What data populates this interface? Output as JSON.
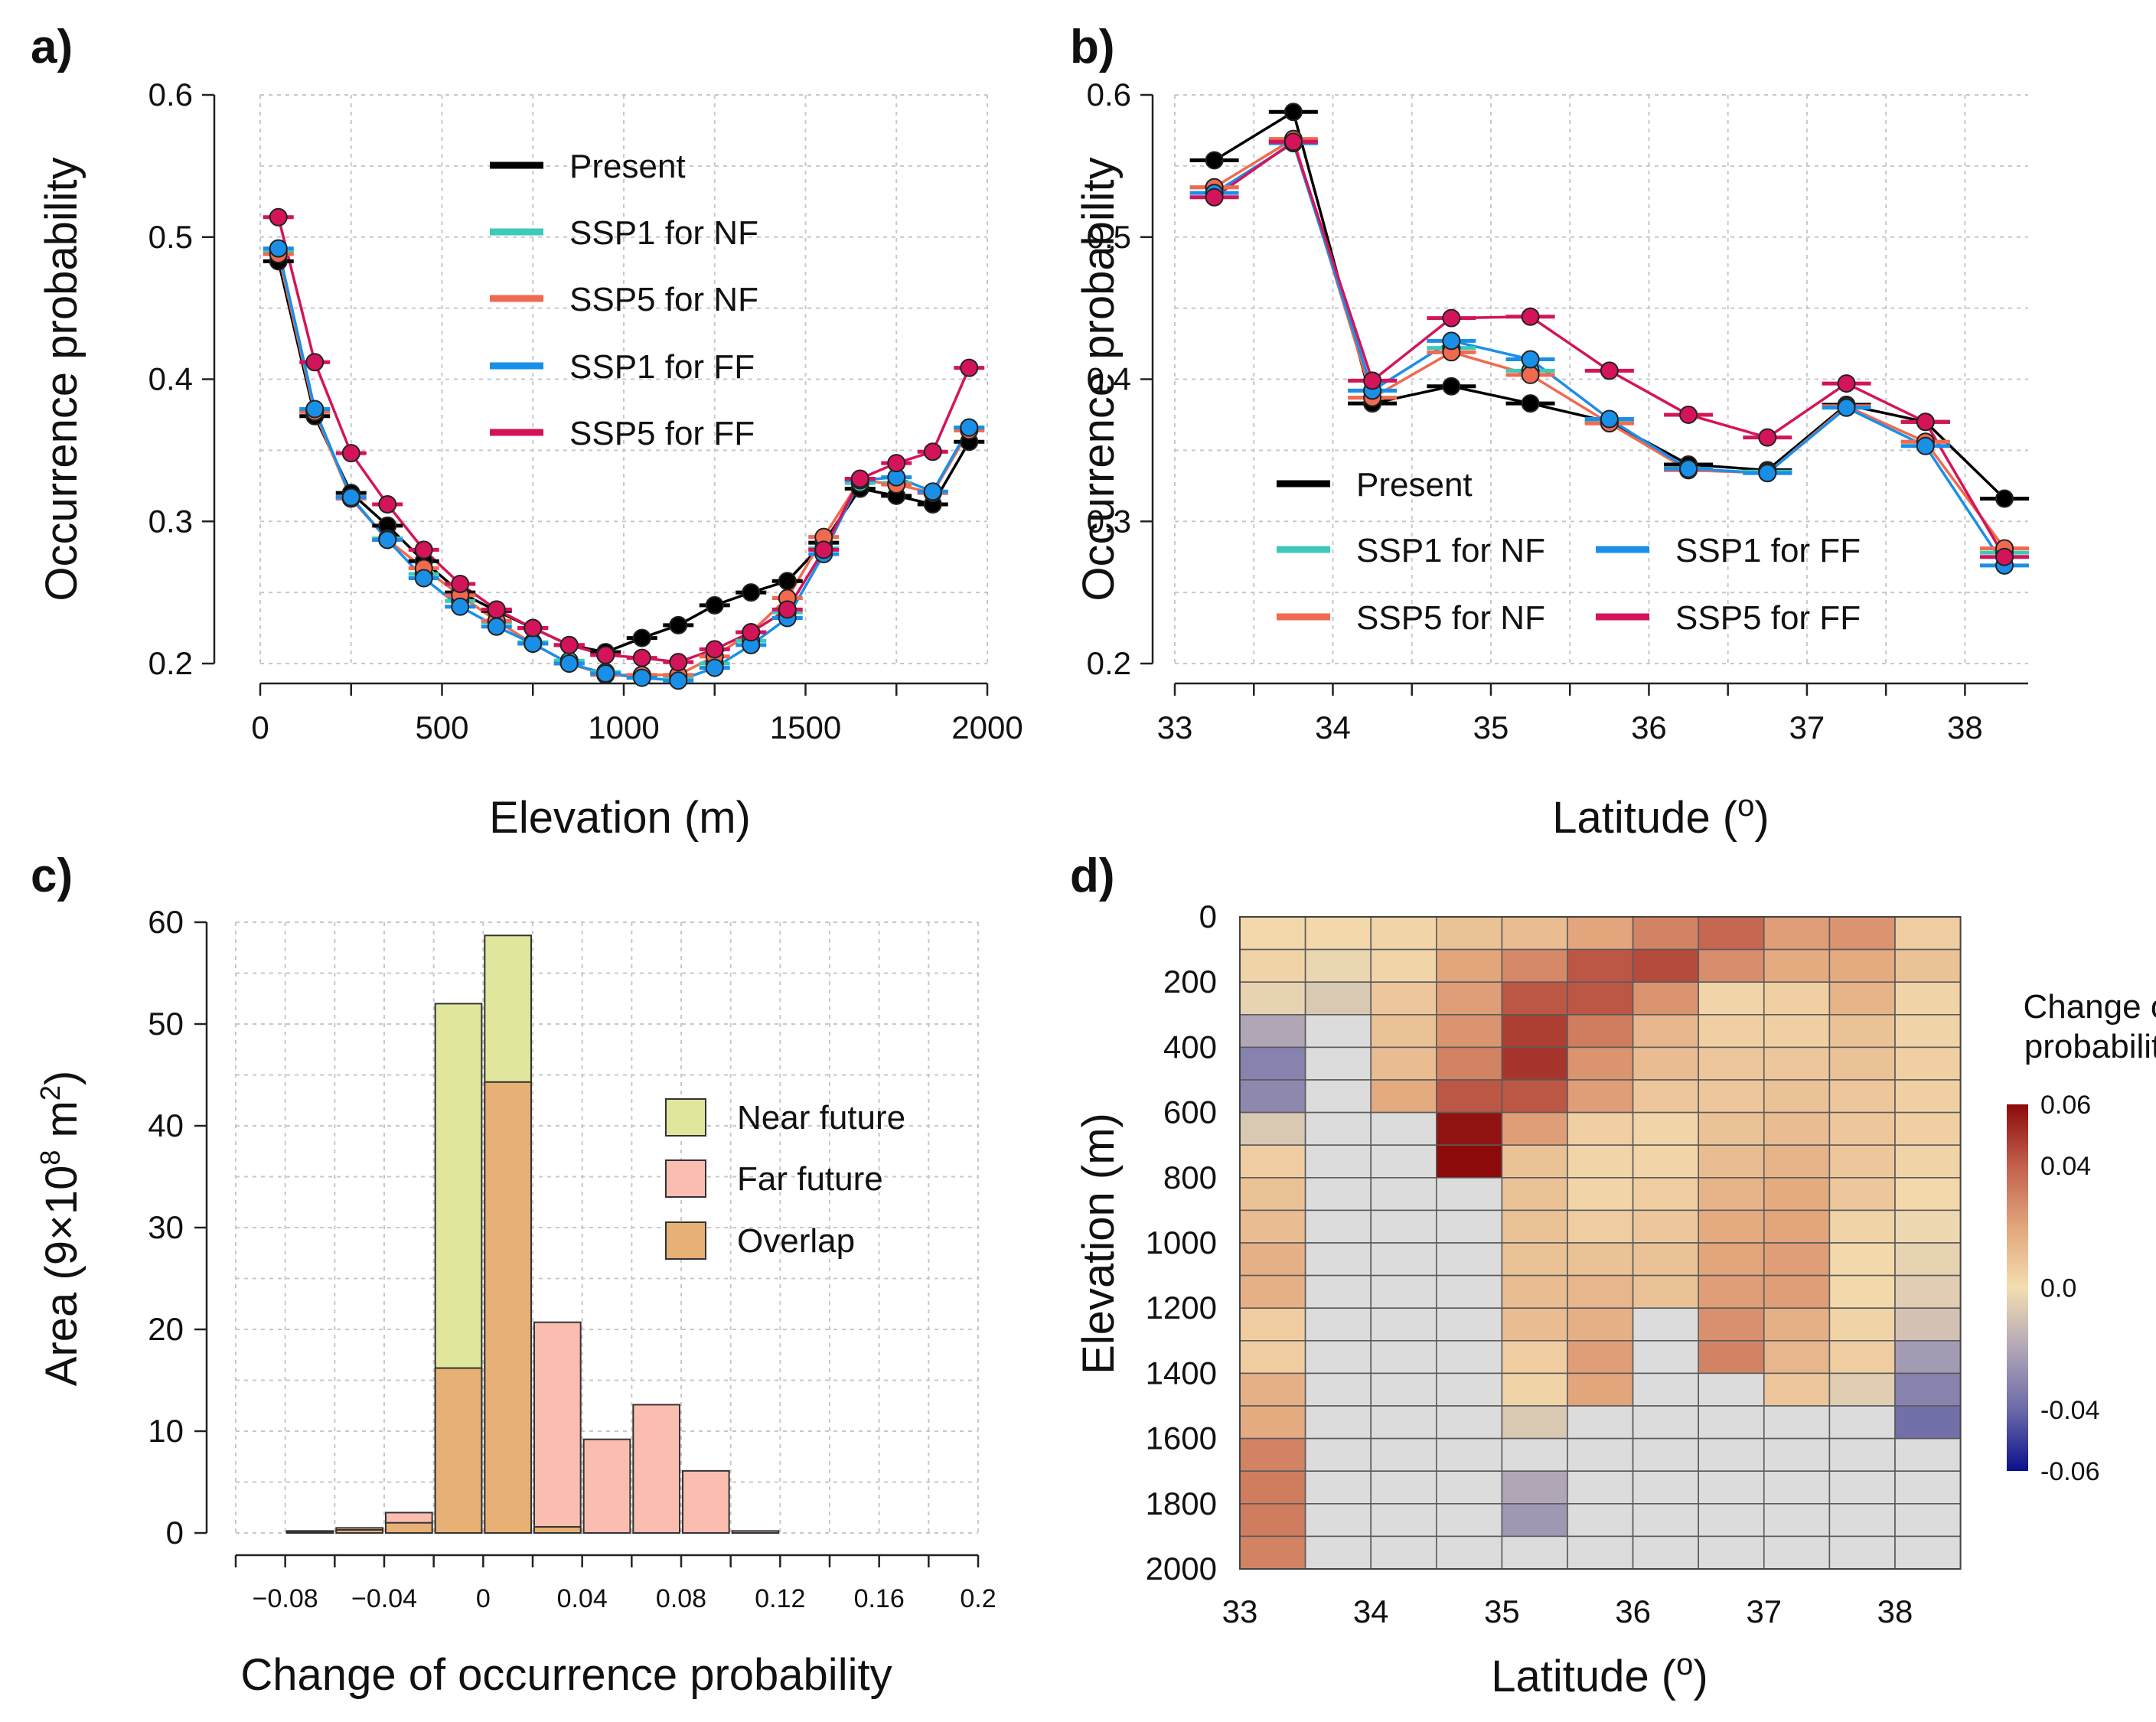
{
  "colors": {
    "present": "#000000",
    "ssp1_nf": "#3ec9b8",
    "ssp5_nf": "#f06a50",
    "ssp1_ff": "#1a8fe8",
    "ssp5_ff": "#d4145a",
    "near_future": "#e0e69c",
    "far_future": "#fbbdb0",
    "overlap": "#e7b074",
    "no_data": "#dcdcdc",
    "grid": "#c8c8c8"
  },
  "chart_data": [
    {
      "id": "a",
      "panel_label": "a)",
      "type": "line",
      "xlabel": "Elevation (m)",
      "ylabel": "Occurrence probability",
      "xlim": [
        0,
        2000
      ],
      "ylim": [
        0.2,
        0.6
      ],
      "xticks": [
        0,
        500,
        1000,
        1500,
        2000
      ],
      "xtick_labels": [
        "0",
        "500",
        "1000",
        "1500",
        "2000"
      ],
      "yticks": [
        0.2,
        0.3,
        0.4,
        0.5,
        0.6
      ],
      "ytick_labels": [
        "0.2",
        "0.3",
        "0.4",
        "0.5",
        "0.6"
      ],
      "legend_position": "top-center",
      "x": [
        50,
        150,
        250,
        350,
        450,
        550,
        650,
        750,
        850,
        950,
        1050,
        1150,
        1250,
        1350,
        1450,
        1550,
        1650,
        1750,
        1850,
        1950
      ],
      "series": [
        {
          "key": "present",
          "name": "Present",
          "values": [
            0.483,
            0.374,
            0.32,
            0.297,
            0.272,
            0.25,
            0.237,
            0.225,
            0.213,
            0.208,
            0.218,
            0.227,
            0.241,
            0.25,
            0.258,
            0.285,
            0.323,
            0.318,
            0.312,
            0.356
          ]
        },
        {
          "key": "ssp1_nf",
          "name": "SSP1 for NF",
          "values": [
            0.49,
            0.378,
            0.317,
            0.288,
            0.263,
            0.244,
            0.229,
            0.215,
            0.202,
            0.194,
            0.191,
            0.19,
            0.2,
            0.216,
            0.236,
            0.281,
            0.327,
            0.327,
            0.32,
            0.366
          ]
        },
        {
          "key": "ssp5_nf",
          "name": "SSP5 for NF",
          "values": [
            0.488,
            0.377,
            0.316,
            0.287,
            0.267,
            0.248,
            0.23,
            0.214,
            0.2,
            0.192,
            0.192,
            0.192,
            0.205,
            0.222,
            0.246,
            0.289,
            0.329,
            0.326,
            0.32,
            0.364
          ]
        },
        {
          "key": "ssp1_ff",
          "name": "SSP1 for FF",
          "values": [
            0.492,
            0.379,
            0.317,
            0.287,
            0.26,
            0.24,
            0.226,
            0.214,
            0.2,
            0.193,
            0.19,
            0.188,
            0.197,
            0.213,
            0.232,
            0.277,
            0.329,
            0.331,
            0.321,
            0.366
          ]
        },
        {
          "key": "ssp5_ff",
          "name": "SSP5 for FF",
          "values": [
            0.514,
            0.412,
            0.348,
            0.312,
            0.28,
            0.256,
            0.238,
            0.225,
            0.213,
            0.206,
            0.204,
            0.201,
            0.21,
            0.222,
            0.238,
            0.28,
            0.33,
            0.341,
            0.349,
            0.408
          ]
        }
      ]
    },
    {
      "id": "b",
      "panel_label": "b)",
      "type": "line",
      "xlabel": "Latitude (",
      "xlabel_degree": "o",
      "xlabel_close": ")",
      "ylabel": "Occurrence probability",
      "xlim": [
        33,
        38.4
      ],
      "ylim": [
        0.2,
        0.6
      ],
      "xticks": [
        33,
        34,
        35,
        36,
        37,
        38
      ],
      "xtick_labels": [
        "33",
        "34",
        "35",
        "36",
        "37",
        "38"
      ],
      "yticks": [
        0.2,
        0.3,
        0.4,
        0.5,
        0.6
      ],
      "ytick_labels": [
        "0.2",
        "0.3",
        "0.4",
        "0.5",
        "0.6"
      ],
      "legend_position": "bottom-left",
      "x": [
        33.25,
        33.75,
        34.25,
        34.75,
        35.25,
        35.75,
        36.25,
        36.75,
        37.25,
        37.75,
        38.25
      ],
      "series": [
        {
          "key": "present",
          "name": "Present",
          "values": [
            0.554,
            0.588,
            0.383,
            0.395,
            0.383,
            0.37,
            0.34,
            0.336,
            0.382,
            0.37,
            0.316
          ]
        },
        {
          "key": "ssp1_nf",
          "name": "SSP1 for NF",
          "values": [
            0.535,
            0.568,
            0.392,
            0.422,
            0.406,
            0.37,
            0.337,
            0.335,
            0.38,
            0.356,
            0.278
          ]
        },
        {
          "key": "ssp5_nf",
          "name": "SSP5 for NF",
          "values": [
            0.535,
            0.569,
            0.387,
            0.419,
            0.403,
            0.369,
            0.336,
            0.334,
            0.381,
            0.356,
            0.281
          ]
        },
        {
          "key": "ssp1_ff",
          "name": "SSP1 for FF",
          "values": [
            0.531,
            0.566,
            0.392,
            0.427,
            0.414,
            0.372,
            0.337,
            0.334,
            0.38,
            0.353,
            0.269
          ]
        },
        {
          "key": "ssp5_ff",
          "name": "SSP5 for FF",
          "values": [
            0.528,
            0.567,
            0.399,
            0.443,
            0.444,
            0.406,
            0.375,
            0.359,
            0.397,
            0.37,
            0.275
          ]
        }
      ]
    },
    {
      "id": "c",
      "panel_label": "c)",
      "type": "bar",
      "xlabel": "Change of occurrence probability",
      "ylabel": "Area (9×10",
      "ylabel_sup": "8",
      "ylabel_unit": " m",
      "ylabel_unit_sup": "2",
      "ylabel_close": ")",
      "xlim": [
        -0.1,
        0.2
      ],
      "ylim": [
        0,
        60
      ],
      "xticks": [
        -0.08,
        -0.04,
        0,
        0.04,
        0.08,
        0.12,
        0.16,
        0.2
      ],
      "xtick_labels": [
        "−0.08",
        "−0.04",
        "0",
        "0.04",
        "0.08",
        "0.12",
        "0.16",
        "0.2"
      ],
      "yticks": [
        0,
        10,
        20,
        30,
        40,
        50,
        60
      ],
      "ytick_labels": [
        "0",
        "10",
        "20",
        "30",
        "40",
        "50",
        "60"
      ],
      "legend_position": "top-right",
      "bin_width": 0.02,
      "bin_starts": [
        -0.08,
        -0.06,
        -0.04,
        -0.02,
        0.0,
        0.02,
        0.04,
        0.06,
        0.08,
        0.1
      ],
      "series": [
        {
          "key": "near_future",
          "name": "Near future",
          "values": [
            0.1,
            0.3,
            1.0,
            52.0,
            58.7,
            0.6,
            0,
            0,
            0,
            0
          ]
        },
        {
          "key": "far_future",
          "name": "Far future",
          "values": [
            0.2,
            0.5,
            2.0,
            16.2,
            44.3,
            20.7,
            9.2,
            12.6,
            6.1,
            0.2
          ]
        },
        {
          "key": "overlap",
          "name": "Overlap",
          "values": [
            0.1,
            0.3,
            1.0,
            16.2,
            44.3,
            0.6,
            0,
            0,
            0,
            0
          ]
        }
      ]
    },
    {
      "id": "d",
      "panel_label": "d)",
      "type": "heatmap",
      "xlabel": "Latitude (",
      "xlabel_degree": "o",
      "xlabel_close": ")",
      "ylabel": "Elevation (m)",
      "x_range": [
        33,
        38.5
      ],
      "x_step": 0.5,
      "y_range": [
        0,
        2000
      ],
      "y_step": 100,
      "xticks": [
        33,
        34,
        35,
        36,
        37,
        38
      ],
      "xtick_labels": [
        "33",
        "34",
        "35",
        "36",
        "37",
        "38"
      ],
      "yticks": [
        0,
        200,
        400,
        600,
        800,
        1000,
        1200,
        1400,
        1600,
        1800,
        2000
      ],
      "ytick_labels": [
        "0",
        "200",
        "400",
        "600",
        "800",
        "1000",
        "1200",
        "1400",
        "1600",
        "1800",
        "2000"
      ],
      "colorbar": {
        "title_lines": [
          "Change of",
          "probability"
        ],
        "min": -0.06,
        "max": 0.06,
        "ticks": [
          0.06,
          0.04,
          0.0,
          -0.04,
          -0.06
        ],
        "tick_labels": [
          "0.06",
          "0.04",
          "0.0",
          "-0.04",
          "-0.06"
        ]
      },
      "note": "values = change of probability per cell; null = no data (grey)",
      "values": [
        [
          0.002,
          0.002,
          0.003,
          0.01,
          0.012,
          0.02,
          0.03,
          0.038,
          0.022,
          0.025,
          0.006
        ],
        [
          0.004,
          -0.003,
          0.003,
          0.02,
          0.028,
          0.042,
          0.045,
          0.027,
          0.018,
          0.018,
          0.01
        ],
        [
          -0.004,
          -0.008,
          0.008,
          0.022,
          0.042,
          0.042,
          0.025,
          0.003,
          0.005,
          0.015,
          0.004
        ],
        [
          -0.02,
          null,
          0.01,
          0.025,
          0.048,
          0.032,
          0.014,
          0.005,
          0.005,
          0.01,
          0.004
        ],
        [
          -0.032,
          null,
          0.012,
          0.03,
          0.05,
          0.025,
          0.012,
          0.008,
          0.008,
          0.01,
          0.005
        ],
        [
          -0.03,
          null,
          0.018,
          0.042,
          0.042,
          0.022,
          0.008,
          0.008,
          0.01,
          0.008,
          0.005
        ],
        [
          -0.008,
          null,
          null,
          0.058,
          0.022,
          0.005,
          0.003,
          0.01,
          0.012,
          0.008,
          0.005
        ],
        [
          0.006,
          null,
          null,
          0.06,
          0.01,
          0.003,
          0.003,
          0.012,
          0.015,
          0.008,
          0.004
        ],
        [
          0.01,
          null,
          null,
          null,
          0.01,
          0.003,
          0.006,
          0.015,
          0.018,
          0.008,
          0.002
        ],
        [
          0.012,
          null,
          null,
          null,
          0.01,
          0.006,
          0.008,
          0.018,
          0.02,
          0.004,
          -0.002
        ],
        [
          0.016,
          null,
          null,
          null,
          0.01,
          0.01,
          0.01,
          0.02,
          0.022,
          0.002,
          -0.004
        ],
        [
          0.016,
          null,
          null,
          null,
          0.012,
          0.014,
          0.01,
          0.022,
          0.022,
          0.002,
          -0.006
        ],
        [
          0.006,
          null,
          null,
          null,
          0.012,
          0.016,
          null,
          0.026,
          0.016,
          0.004,
          -0.01
        ],
        [
          0.006,
          null,
          null,
          null,
          0.006,
          0.022,
          null,
          0.03,
          0.014,
          0.006,
          -0.024
        ],
        [
          0.016,
          null,
          null,
          null,
          0.004,
          0.02,
          null,
          null,
          0.008,
          -0.006,
          -0.032
        ],
        [
          0.018,
          null,
          null,
          null,
          -0.008,
          null,
          null,
          null,
          null,
          null,
          -0.038
        ],
        [
          0.03,
          null,
          null,
          null,
          null,
          null,
          null,
          null,
          null,
          null,
          null
        ],
        [
          0.032,
          null,
          null,
          null,
          -0.02,
          null,
          null,
          null,
          null,
          null,
          null
        ],
        [
          0.032,
          null,
          null,
          null,
          -0.025,
          null,
          null,
          null,
          null,
          null,
          null
        ],
        [
          0.03,
          null,
          null,
          null,
          null,
          null,
          null,
          null,
          null,
          null,
          null
        ]
      ]
    }
  ]
}
